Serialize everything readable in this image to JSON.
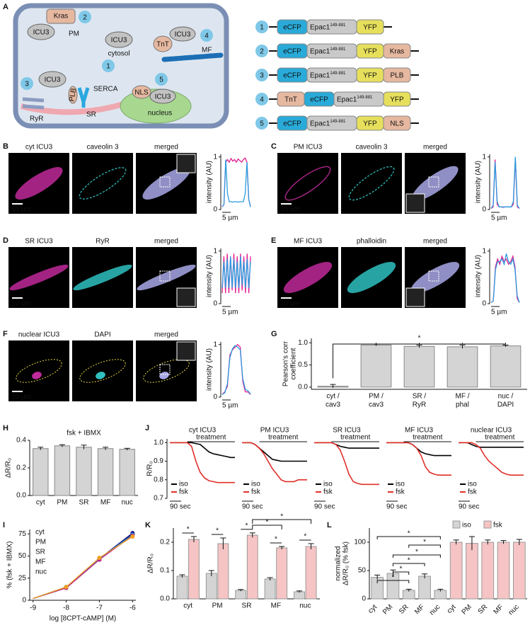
{
  "panel_labels": [
    "A",
    "B",
    "C",
    "D",
    "E",
    "F",
    "G",
    "H",
    "I",
    "J",
    "K",
    "L"
  ],
  "diagram": {
    "numbers": [
      "1",
      "2",
      "3",
      "4",
      "5"
    ],
    "labels": {
      "kras": "Kras",
      "icu3": "ICU3",
      "pm": "PM",
      "cytosol": "cytosol",
      "tnt": "TnT",
      "mf": "MF",
      "plb": "PLB",
      "serca": "SERCA",
      "sr": "SR",
      "ryr": "RyR",
      "nls": "NLS",
      "nucleus": "nucleus"
    },
    "epac_range": "149-881",
    "part_colors": {
      "eCFP": "#29aad8",
      "Epac1": "#c9c9c9",
      "YFP": "#e6df5c",
      "Kras": "#e6b8a0",
      "PLB": "#e6b8a0",
      "TnT": "#e6b8a0",
      "NLS": "#e6b8a0"
    },
    "constructs": [
      {
        "number": "1",
        "parts": [
          "eCFP",
          "Epac1",
          "YFP"
        ]
      },
      {
        "number": "2",
        "parts": [
          "eCFP",
          "Epac1",
          "YFP",
          "Kras"
        ]
      },
      {
        "number": "3",
        "parts": [
          "eCFP",
          "Epac1",
          "YFP",
          "PLB"
        ]
      },
      {
        "number": "4",
        "parts": [
          "TnT",
          "eCFP",
          "Epac1",
          "YFP"
        ]
      },
      {
        "number": "5",
        "parts": [
          "eCFP",
          "Epac1",
          "YFP",
          "NLS"
        ]
      }
    ]
  },
  "micrographs": [
    {
      "labels": [
        "cyt ICU3",
        "caveolin 3",
        "merged"
      ],
      "scale": "10 µm"
    },
    {
      "labels": [
        "PM ICU3",
        "caveolin 3",
        "merged"
      ],
      "scale": "10 µm"
    },
    {
      "labels": [
        "SR ICU3",
        "RyR",
        "merged"
      ],
      "scale": "10 µm"
    },
    {
      "labels": [
        "MF ICU3",
        "phalloidin",
        "merged"
      ],
      "scale": "10 µm"
    },
    {
      "labels": [
        "nuclear ICU3",
        "DAPI",
        "merged"
      ],
      "scale": "10 µm"
    }
  ],
  "chart_data": [
    {
      "type": "line",
      "ylabel": "intensity (AU)",
      "scale": "5 µm",
      "ylim": [
        0,
        1.05
      ],
      "yticks": [
        0,
        1
      ],
      "series": [
        {
          "color": "#e0208f",
          "values": [
            0.05,
            0.1,
            0.9,
            0.95,
            0.9,
            0.97,
            0.92,
            0.95,
            0.9,
            0.96,
            0.93,
            0.9,
            0.95,
            0.98,
            0.9,
            0.2,
            0.05
          ]
        },
        {
          "color": "#2a9be0",
          "values": [
            0.05,
            0.1,
            0.95,
            0.3,
            0.15,
            0.15,
            0.14,
            0.15,
            0.15,
            0.14,
            0.15,
            0.15,
            0.15,
            0.3,
            0.9,
            0.2,
            0.05
          ]
        }
      ]
    },
    {
      "type": "line",
      "ylabel": "intensity (AU)",
      "scale": "5 µm",
      "ylim": [
        0,
        1.05
      ],
      "yticks": [
        0,
        1
      ],
      "series": [
        {
          "color": "#e0208f",
          "values": [
            0.02,
            0.05,
            0.95,
            0.1,
            0.05,
            0.05,
            0.04,
            0.05,
            0.05,
            0.05,
            0.05,
            0.1,
            0.95,
            0.05,
            0.02
          ]
        },
        {
          "color": "#2a9be0",
          "values": [
            0.02,
            0.08,
            0.9,
            0.15,
            0.05,
            0.05,
            0.05,
            0.05,
            0.05,
            0.05,
            0.05,
            0.15,
            1.0,
            0.08,
            0.02
          ]
        }
      ]
    },
    {
      "type": "line",
      "ylabel": "intensity (AU)",
      "scale": "5 µm",
      "ylim": [
        0,
        1.05
      ],
      "yticks": [
        0,
        1
      ],
      "series": [
        {
          "color": "#e0208f",
          "values": [
            0.2,
            0.9,
            0.2,
            0.95,
            0.2,
            0.9,
            0.25,
            0.95,
            0.2,
            0.9,
            0.2,
            0.95,
            0.25,
            0.9,
            0.2,
            0.95,
            0.2,
            0.9
          ]
        },
        {
          "color": "#2a9be0",
          "values": [
            0.3,
            0.8,
            0.3,
            0.85,
            0.3,
            0.9,
            0.3,
            0.85,
            0.3,
            0.8,
            0.3,
            0.9,
            0.35,
            0.8,
            0.3,
            0.85,
            0.3,
            0.8
          ]
        }
      ]
    },
    {
      "type": "line",
      "ylabel": "intensity (AU)",
      "scale": "5 µm",
      "ylim": [
        0,
        1.05
      ],
      "yticks": [
        0,
        1
      ],
      "series": [
        {
          "color": "#e0208f",
          "values": [
            0.02,
            0.05,
            0.7,
            0.85,
            0.75,
            0.9,
            0.8,
            0.85,
            0.75,
            0.8,
            0.9,
            0.7,
            0.1,
            0.02
          ]
        },
        {
          "color": "#2a9be0",
          "values": [
            0.02,
            0.05,
            0.65,
            0.8,
            0.8,
            0.85,
            0.75,
            0.95,
            0.8,
            0.75,
            0.85,
            0.65,
            0.15,
            0.02
          ]
        }
      ]
    },
    {
      "type": "line",
      "ylabel": "intensity (AU)",
      "scale": "5 µm",
      "ylim": [
        0,
        1.05
      ],
      "yticks": [
        0,
        1
      ],
      "series": [
        {
          "color": "#e0208f",
          "values": [
            0.05,
            0.1,
            0.2,
            0.8,
            0.9,
            0.95,
            1.0,
            0.95,
            0.3,
            0.1,
            0.1,
            0.05
          ]
        },
        {
          "color": "#2a9be0",
          "values": [
            0.05,
            0.08,
            0.25,
            0.75,
            0.92,
            0.98,
            0.95,
            0.9,
            0.35,
            0.15,
            0.12,
            0.06
          ]
        }
      ]
    },
    {
      "type": "bar",
      "ylabel": [
        "Pearson's corr",
        "coefficient"
      ],
      "annotation": "*",
      "color": "#d4d4d4",
      "categories": [
        [
          "cyt /",
          "cav3"
        ],
        [
          "PM /",
          "cav3"
        ],
        [
          "SR /",
          "RyR"
        ],
        [
          "MF /",
          "phal"
        ],
        [
          "nuc /",
          "DAPI"
        ]
      ],
      "values": [
        0.02,
        0.95,
        0.92,
        0.91,
        0.93
      ],
      "errors": [
        0.04,
        0.02,
        0.03,
        0.04,
        0.02
      ],
      "ylim": [
        -0.05,
        1.1
      ],
      "yticks": [
        {
          "value": 0,
          "label": "0.0"
        },
        {
          "value": 0.5,
          "label": "0.5"
        },
        {
          "value": 1,
          "label": "1.0"
        }
      ]
    },
    {
      "type": "bar",
      "title": "fsk + IBMX",
      "ylabel": "ΔR/R₀",
      "color": "#d4d4d4",
      "categories": [
        "cyt",
        "PM",
        "SR",
        "MF",
        "nuc"
      ],
      "values": [
        0.34,
        0.36,
        0.35,
        0.34,
        0.335
      ],
      "errors": [
        0.01,
        0.008,
        0.015,
        0.01,
        0.007
      ],
      "ylim": [
        0,
        0.4
      ],
      "yticks": [
        {
          "value": 0,
          "label": "0.0"
        },
        {
          "value": 0.2,
          "label": "0.2"
        },
        {
          "value": 0.4,
          "label": "0.4"
        }
      ]
    },
    {
      "type": "line",
      "xlabel": "log [8CPT-cAMP] (M)",
      "ylabel": "% (fsk + IBMX)",
      "x": [
        -9,
        -8,
        -7,
        -6
      ],
      "xlim": [
        -9.1,
        -5.9
      ],
      "xticks": [
        -9,
        -8,
        -7,
        -6
      ],
      "ylim": [
        0,
        80
      ],
      "yticks": [
        0,
        25,
        50,
        75
      ],
      "series": [
        {
          "name": "cyt",
          "color": "#000000",
          "values": [
            2,
            14,
            46,
            75
          ]
        },
        {
          "name": "PM",
          "color": "#1a1a8c",
          "values": [
            2,
            15,
            47,
            76
          ]
        },
        {
          "name": "SR",
          "color": "#2aa0d8",
          "values": [
            2,
            15,
            47,
            74
          ]
        },
        {
          "name": "MF",
          "color": "#c0208a",
          "values": [
            2,
            14,
            46,
            73
          ]
        },
        {
          "name": "nuc",
          "color": "#f0a020",
          "values": [
            2,
            15,
            48,
            72
          ]
        }
      ]
    },
    {
      "type": "line",
      "title": "cyt ICU3",
      "annotation": "treatment",
      "scale": "90 sec",
      "ylabel": "R/R₀",
      "ylim": [
        0.7,
        1.02
      ],
      "yticks": [
        0.7,
        0.8,
        0.9,
        {
          "value": 1,
          "label": "1.0"
        }
      ],
      "series": [
        {
          "name": "iso",
          "color": "#000000",
          "values": [
            1,
            1,
            1,
            1,
            1,
            1,
            0.995,
            0.99,
            0.97,
            0.95,
            0.94,
            0.935,
            0.93,
            0.925,
            0.92,
            0.92
          ]
        },
        {
          "name": "fsk",
          "color": "#e0302a",
          "values": [
            1,
            1,
            1,
            1,
            1,
            0.98,
            0.9,
            0.84,
            0.81,
            0.795,
            0.79,
            0.785,
            0.785,
            0.785,
            0.785,
            0.785
          ]
        }
      ]
    },
    {
      "type": "line",
      "title": "PM ICU3",
      "annotation": "treatment",
      "scale": "90 sec",
      "ylim": [
        0.7,
        1.02
      ],
      "series": [
        {
          "name": "iso",
          "color": "#000000",
          "values": [
            1,
            1,
            1,
            0.99,
            0.97,
            0.95,
            0.93,
            0.91,
            0.905,
            0.9,
            0.9,
            0.9,
            0.9,
            0.9,
            0.9,
            0.9
          ]
        },
        {
          "name": "fsk",
          "color": "#e0302a",
          "values": [
            1,
            1,
            1,
            0.99,
            0.97,
            0.94,
            0.9,
            0.86,
            0.83,
            0.8,
            0.79,
            0.79,
            0.79,
            0.8,
            0.8,
            0.8
          ]
        }
      ]
    },
    {
      "type": "line",
      "title": "SR ICU3",
      "annotation": "treatment",
      "scale": "90 sec",
      "ylim": [
        0.7,
        1.02
      ],
      "series": [
        {
          "name": "iso",
          "color": "#000000",
          "values": [
            1,
            1,
            1,
            1,
            1,
            0.99,
            0.98,
            0.975,
            0.97,
            0.97,
            0.97,
            0.97,
            0.97,
            0.97,
            0.97,
            0.97
          ]
        },
        {
          "name": "fsk",
          "color": "#e0302a",
          "values": [
            1,
            1,
            1,
            1,
            1,
            0.99,
            0.96,
            0.9,
            0.83,
            0.79,
            0.78,
            0.775,
            0.775,
            0.775,
            0.775,
            0.775
          ]
        }
      ]
    },
    {
      "type": "line",
      "title": "MF ICU3",
      "annotation": "treatment",
      "scale": "90 sec",
      "ylim": [
        0.7,
        1.02
      ],
      "series": [
        {
          "name": "iso",
          "color": "#000000",
          "values": [
            1,
            1,
            1,
            1,
            1,
            1,
            0.99,
            0.97,
            0.95,
            0.94,
            0.935,
            0.93,
            0.93,
            0.93,
            0.93,
            0.93
          ]
        },
        {
          "name": "fsk",
          "color": "#e0302a",
          "values": [
            1,
            1,
            1,
            1,
            1,
            1,
            0.99,
            0.97,
            0.93,
            0.87,
            0.84,
            0.83,
            0.825,
            0.825,
            0.825,
            0.825
          ]
        }
      ]
    },
    {
      "type": "line",
      "title": "nuclear ICU3",
      "annotation": "treatment",
      "scale": "90 sec",
      "ylim": [
        0.7,
        1.02
      ],
      "series": [
        {
          "name": "iso",
          "color": "#000000",
          "values": [
            1,
            1,
            1,
            0.99,
            0.98,
            0.975,
            0.975,
            0.975,
            0.975,
            0.975,
            0.975,
            0.975,
            0.975,
            0.975,
            0.975,
            0.975
          ]
        },
        {
          "name": "fsk",
          "color": "#e0302a",
          "values": [
            1,
            1,
            1,
            1,
            0.99,
            0.97,
            0.93,
            0.9,
            0.88,
            0.86,
            0.84,
            0.83,
            0.825,
            0.825,
            0.825,
            0.825
          ]
        }
      ]
    },
    {
      "type": "bar",
      "ylabel": "ΔR/R₀",
      "annotation": "*",
      "categories": [
        "cyt",
        "PM",
        "SR",
        "MF",
        "nuc"
      ],
      "ylim": [
        0,
        0.25
      ],
      "yticks": [
        {
          "value": 0,
          "label": "0.0"
        },
        {
          "value": 0.1,
          "label": "0.1"
        },
        {
          "value": 0.2,
          "label": "0.2"
        }
      ],
      "series": [
        {
          "name": "iso",
          "color": "#d4d4d4",
          "values": [
            0.08,
            0.09,
            0.03,
            0.07,
            0.025
          ],
          "errors": [
            0.005,
            0.01,
            0.003,
            0.005,
            0.003
          ]
        },
        {
          "name": "fsk",
          "color": "#f6c4c4",
          "values": [
            0.21,
            0.195,
            0.225,
            0.18,
            0.185
          ],
          "errors": [
            0.01,
            0.02,
            0.008,
            0.005,
            0.01
          ]
        }
      ]
    },
    {
      "type": "bar",
      "ylabel": [
        "normalized",
        "ΔR/R₀ (% fsk)"
      ],
      "annotation": "*",
      "categories": [
        "cyt",
        "PM",
        "SR",
        "MF",
        "nuc"
      ],
      "ylim": [
        0,
        125
      ],
      "yticks": [
        0,
        50,
        100
      ],
      "series": [
        {
          "name": "iso",
          "color": "#d4d4d4",
          "values": [
            38,
            45,
            15,
            40,
            15
          ],
          "errors": [
            4,
            6,
            2,
            4,
            2
          ]
        },
        {
          "name": "fsk",
          "color": "#f6c4c4",
          "values": [
            100,
            98,
            100,
            100,
            100
          ],
          "errors": [
            4,
            12,
            4,
            3,
            5
          ]
        }
      ]
    }
  ]
}
